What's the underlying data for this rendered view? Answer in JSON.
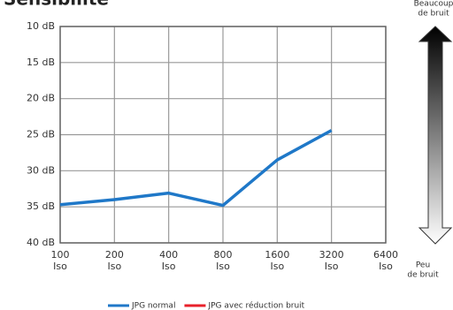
{
  "chart_data": {
    "type": "line",
    "title": "Sensibilité",
    "categories": [
      "100 Iso",
      "200 Iso",
      "400 Iso",
      "800 Iso",
      "1600 Iso",
      "3200 Iso",
      "6400 Iso"
    ],
    "series": [
      {
        "name": "JPG normal",
        "color": "#1f78c8",
        "values": [
          34.7,
          34.0,
          33.1,
          34.8,
          28.5,
          24.4,
          null
        ]
      },
      {
        "name": "JPG avec réduction bruit",
        "color": "#e8202a",
        "values": [
          null,
          null,
          null,
          null,
          null,
          null,
          null
        ]
      }
    ],
    "ylim": [
      40,
      10
    ],
    "yticks": [
      {
        "value": 10,
        "label": "10 dB"
      },
      {
        "value": 15,
        "label": "15 dB"
      },
      {
        "value": 20,
        "label": "20 dB"
      },
      {
        "value": 25,
        "label": "25 dB"
      },
      {
        "value": 30,
        "label": "30 dB"
      },
      {
        "value": 35,
        "label": "35 dB"
      },
      {
        "value": 40,
        "label": "40 dB"
      }
    ],
    "grid": true,
    "annotations": {
      "top": [
        "Beaucoup",
        "de bruit"
      ],
      "bottom": [
        "Peu",
        "de bruit"
      ]
    }
  }
}
